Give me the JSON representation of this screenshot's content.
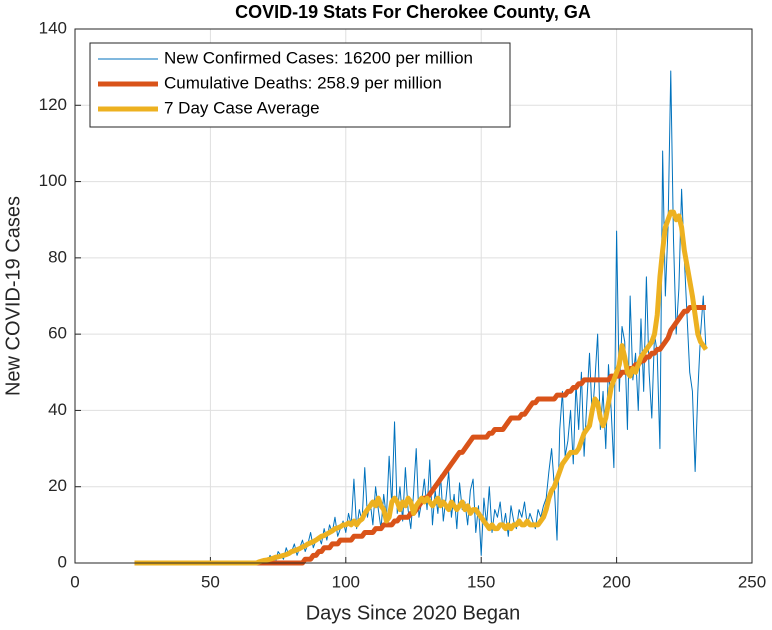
{
  "chart_data": {
    "type": "line",
    "title": "COVID-19 Stats For Cherokee County, GA",
    "x_label": "Days Since 2020 Began",
    "y_label": "New COVID-19 Cases",
    "xlim": [
      0,
      250
    ],
    "xticks": [
      0,
      50,
      100,
      150,
      200,
      250
    ],
    "ylim": [
      0,
      140
    ],
    "yticks": [
      0,
      20,
      40,
      60,
      80,
      100,
      120,
      140
    ],
    "grid": true,
    "legend": "top-left",
    "x": [
      22,
      23,
      24,
      25,
      26,
      27,
      28,
      29,
      30,
      31,
      32,
      33,
      34,
      35,
      36,
      37,
      38,
      39,
      40,
      41,
      42,
      43,
      44,
      45,
      46,
      47,
      48,
      49,
      50,
      51,
      52,
      53,
      54,
      55,
      56,
      57,
      58,
      59,
      60,
      61,
      62,
      63,
      64,
      65,
      66,
      67,
      68,
      69,
      70,
      71,
      72,
      73,
      74,
      75,
      76,
      77,
      78,
      79,
      80,
      81,
      82,
      83,
      84,
      85,
      86,
      87,
      88,
      89,
      90,
      91,
      92,
      93,
      94,
      95,
      96,
      97,
      98,
      99,
      100,
      101,
      102,
      103,
      104,
      105,
      106,
      107,
      108,
      109,
      110,
      111,
      112,
      113,
      114,
      115,
      116,
      117,
      118,
      119,
      120,
      121,
      122,
      123,
      124,
      125,
      126,
      127,
      128,
      129,
      130,
      131,
      132,
      133,
      134,
      135,
      136,
      137,
      138,
      139,
      140,
      141,
      142,
      143,
      144,
      145,
      146,
      147,
      148,
      149,
      150,
      151,
      152,
      153,
      154,
      155,
      156,
      157,
      158,
      159,
      160,
      161,
      162,
      163,
      164,
      165,
      166,
      167,
      168,
      169,
      170,
      171,
      172,
      173,
      174,
      175,
      176,
      177,
      178,
      179,
      180,
      181,
      182,
      183,
      184,
      185,
      186,
      187,
      188,
      189,
      190,
      191,
      192,
      193,
      194,
      195,
      196,
      197,
      198,
      199,
      200,
      201,
      202,
      203,
      204,
      205,
      206,
      207,
      208,
      209,
      210,
      211,
      212,
      213,
      214,
      215,
      216,
      217,
      218,
      219,
      220,
      221,
      222,
      223,
      224,
      225,
      226,
      227,
      228,
      229,
      230,
      231,
      232,
      233
    ],
    "series": [
      {
        "name": "New Confirmed Cases: 16200 per million",
        "color": "#0072bd",
        "width": 1,
        "values": [
          0,
          0,
          0,
          0,
          0,
          0,
          0,
          0,
          0,
          0,
          0,
          0,
          0,
          0,
          0,
          0,
          0,
          0,
          0,
          0,
          0,
          0,
          0,
          0,
          0,
          0,
          0,
          0,
          0,
          0,
          0,
          0,
          0,
          0,
          0,
          0,
          0,
          0,
          0,
          0,
          0,
          0,
          0,
          0,
          0,
          0,
          0,
          0,
          1,
          0,
          2,
          1,
          0,
          3,
          2,
          1,
          4,
          2,
          3,
          5,
          2,
          4,
          6,
          3,
          5,
          8,
          4,
          6,
          7,
          5,
          9,
          6,
          10,
          8,
          12,
          7,
          9,
          11,
          8,
          13,
          10,
          22,
          9,
          14,
          11,
          25,
          12,
          16,
          10,
          20,
          14,
          9,
          18,
          12,
          28,
          15,
          37,
          13,
          20,
          11,
          25,
          14,
          9,
          18,
          30,
          12,
          16,
          22,
          14,
          27,
          10,
          19,
          13,
          23,
          11,
          17,
          24,
          12,
          18,
          9,
          21,
          14,
          16,
          10,
          19,
          22,
          8,
          15,
          2,
          17,
          10,
          20,
          8,
          14,
          12,
          16,
          9,
          13,
          7,
          15,
          11,
          9,
          14,
          12,
          16,
          10,
          13,
          11,
          9,
          14,
          12,
          15,
          17,
          24,
          30,
          20,
          6,
          35,
          45,
          28,
          32,
          40,
          26,
          47,
          35,
          50,
          28,
          42,
          55,
          38,
          48,
          60,
          35,
          45,
          30,
          52,
          40,
          25,
          87,
          45,
          62,
          58,
          35,
          70,
          48,
          55,
          40,
          64,
          45,
          75,
          50,
          38,
          60,
          55,
          30,
          108,
          70,
          88,
          129,
          85,
          60,
          72,
          98,
          80,
          65,
          50,
          45,
          24,
          45,
          60,
          70,
          56
        ]
      },
      {
        "name": "Cumulative Deaths: 258.9 per million",
        "color": "#d95319",
        "width": 5,
        "values": [
          0,
          0,
          0,
          0,
          0,
          0,
          0,
          0,
          0,
          0,
          0,
          0,
          0,
          0,
          0,
          0,
          0,
          0,
          0,
          0,
          0,
          0,
          0,
          0,
          0,
          0,
          0,
          0,
          0,
          0,
          0,
          0,
          0,
          0,
          0,
          0,
          0,
          0,
          0,
          0,
          0,
          0,
          0,
          0,
          0,
          0,
          0,
          0,
          0,
          0,
          0,
          0,
          0,
          0,
          0,
          0,
          0,
          0,
          0,
          0,
          0,
          0,
          0,
          1,
          1,
          1,
          2,
          2,
          3,
          3,
          4,
          4,
          4,
          5,
          5,
          5,
          6,
          6,
          6,
          6,
          6,
          7,
          7,
          7,
          7,
          8,
          8,
          8,
          8,
          9,
          9,
          9,
          10,
          10,
          10,
          10,
          11,
          11,
          12,
          12,
          12,
          12,
          13,
          13,
          14,
          15,
          16,
          17,
          17,
          18,
          19,
          20,
          21,
          22,
          23,
          24,
          25,
          26,
          27,
          28,
          29,
          29,
          30,
          31,
          32,
          33,
          33,
          33,
          33,
          33,
          33,
          34,
          34,
          35,
          35,
          35,
          35,
          36,
          37,
          38,
          38,
          38,
          38,
          39,
          39,
          40,
          41,
          42,
          42,
          43,
          43,
          43,
          43,
          43,
          43,
          43,
          44,
          44,
          44,
          44,
          45,
          45,
          46,
          46,
          47,
          47,
          48,
          48,
          48,
          48,
          48,
          48,
          48,
          48,
          48,
          48,
          49,
          49,
          49,
          49,
          50,
          50,
          50,
          51,
          51,
          52,
          52,
          53,
          53,
          54,
          54,
          55,
          55,
          56,
          56,
          57,
          58,
          59,
          61,
          62,
          63,
          64,
          65,
          66,
          66,
          67,
          67,
          67,
          67,
          67,
          67,
          67
        ]
      },
      {
        "name": "7 Day Case Average",
        "color": "#edb120",
        "width": 5,
        "values": [
          0,
          0,
          0,
          0,
          0,
          0,
          0,
          0,
          0,
          0,
          0,
          0,
          0,
          0,
          0,
          0,
          0,
          0,
          0,
          0,
          0,
          0,
          0,
          0,
          0,
          0,
          0,
          0,
          0,
          0,
          0,
          0,
          0,
          0,
          0,
          0,
          0,
          0,
          0,
          0,
          0,
          0,
          0,
          0,
          0,
          0,
          0.3,
          0.5,
          0.7,
          0.8,
          1,
          1.2,
          1.5,
          1.6,
          1.8,
          2,
          2.2,
          2.5,
          3,
          3.2,
          3.5,
          3.8,
          4.2,
          4.5,
          5,
          5.3,
          5.6,
          6,
          6.5,
          7,
          7.2,
          7.6,
          8,
          8.4,
          9,
          9.2,
          9.5,
          10,
          10,
          10.5,
          10,
          11,
          10,
          11,
          11.5,
          13,
          14,
          15,
          16,
          15,
          17,
          15,
          14,
          11,
          12,
          16,
          17,
          16,
          14,
          16,
          15,
          17,
          16,
          13,
          15,
          16,
          17,
          16,
          17,
          16,
          15,
          16,
          17,
          15,
          16,
          15,
          14,
          16,
          15,
          14,
          15,
          16,
          14,
          15,
          13,
          14,
          14,
          13,
          12,
          11,
          10,
          9,
          10,
          9,
          9,
          10,
          10,
          9,
          10,
          9,
          10,
          10,
          11,
          10,
          10,
          11,
          10,
          10,
          10,
          10,
          11,
          12,
          14,
          17,
          19,
          20,
          22,
          24,
          26,
          27,
          28,
          29,
          29,
          29,
          30,
          32,
          34,
          35,
          36,
          40,
          43,
          42,
          38,
          36,
          38,
          42,
          46,
          48,
          50,
          52,
          57,
          54,
          50,
          49,
          51,
          50,
          52,
          54,
          55,
          56,
          57,
          58,
          60,
          65,
          75,
          82,
          88,
          90,
          92,
          92,
          90,
          91,
          88,
          82,
          78,
          74,
          70,
          65,
          60,
          58,
          57,
          56
        ]
      }
    ]
  }
}
